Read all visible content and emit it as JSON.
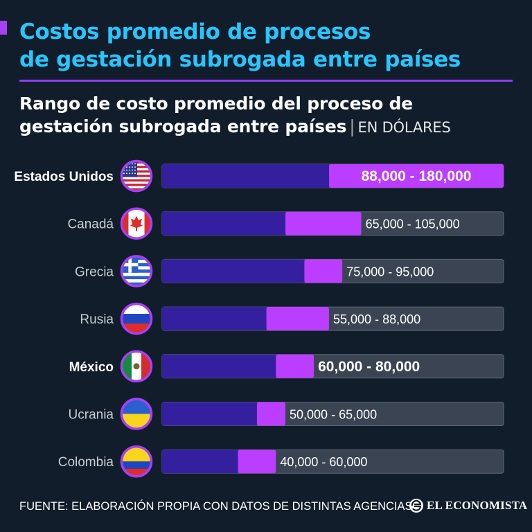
{
  "title": {
    "line1": "Costos promedio de procesos",
    "line2": "de gestación subrogada entre países"
  },
  "subtitle": {
    "line1": "Rango de costo promedio del proceso de",
    "line2": "gestación subrogada entre países",
    "separator": "|",
    "unit": "EN DÓLARES"
  },
  "colors": {
    "background": "#111d2b",
    "title": "#27c6ff",
    "accent": "#a740f5",
    "bar_base": "#34209e",
    "bar_range": "#bb3dff",
    "bar_track": "#3a4452"
  },
  "chart_data": {
    "type": "bar",
    "orientation": "horizontal",
    "style": "range",
    "title": "Rango de costo promedio del proceso de gestación subrogada entre países",
    "unit": "EN DÓLARES",
    "xlim": [
      0,
      180000
    ],
    "categories": [
      "Estados Unidos",
      "Canadá",
      "Grecia",
      "Rusia",
      "México",
      "Ucrania",
      "Colombia"
    ],
    "series": [
      {
        "name": "min",
        "values": [
          88000,
          65000,
          75000,
          55000,
          60000,
          50000,
          40000
        ]
      },
      {
        "name": "max",
        "values": [
          180000,
          105000,
          95000,
          88000,
          80000,
          65000,
          60000
        ]
      }
    ],
    "labels": [
      "88,000 - 180,000",
      "65,000 - 105,000",
      "75,000 - 95,000",
      "55,000 - 88,000",
      "60,000 - 80,000",
      "50,000 - 65,000",
      "40,000 - 60,000"
    ],
    "flag_icons": [
      "usa-flag-icon",
      "canada-flag-icon",
      "greece-flag-icon",
      "russia-flag-icon",
      "mexico-flag-icon",
      "ukraine-flag-icon",
      "colombia-flag-icon"
    ],
    "highlight": [
      "Estados Unidos",
      "México"
    ]
  },
  "footer": {
    "source": "FUENTE: ELABORACIÓN PROPIA CON DATOS DE DISTINTAS AGENCIAS",
    "brand": "EL ECONOMISTA",
    "brand_icon": "el-economista-logo-icon"
  }
}
